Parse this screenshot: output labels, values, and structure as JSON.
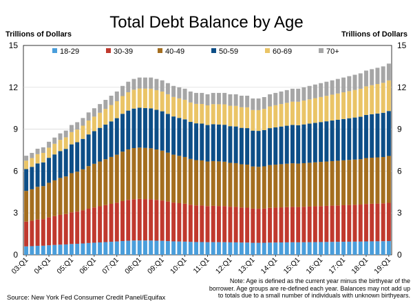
{
  "chart_data": {
    "type": "bar",
    "stacked": true,
    "title": "Total Debt Balance by Age",
    "ylabel_left": "Trillions of Dollars",
    "ylabel_right": "Trillions of Dollars",
    "ylim": [
      0,
      15
    ],
    "yticks": [
      "0",
      "3",
      "6",
      "9",
      "12",
      "15"
    ],
    "xtick_labels": [
      "03:Q1",
      "04:Q1",
      "05:Q1",
      "06:Q1",
      "07:Q1",
      "08:Q1",
      "09:Q1",
      "10:Q1",
      "11:Q1",
      "12:Q1",
      "13:Q1",
      "14:Q1",
      "15:Q1",
      "16:Q1",
      "17:Q1",
      "18:Q1",
      "19:Q1"
    ],
    "categories": [
      "03:Q1",
      "03:Q2",
      "03:Q3",
      "03:Q4",
      "04:Q1",
      "04:Q2",
      "04:Q3",
      "04:Q4",
      "05:Q1",
      "05:Q2",
      "05:Q3",
      "05:Q4",
      "06:Q1",
      "06:Q2",
      "06:Q3",
      "06:Q4",
      "07:Q1",
      "07:Q2",
      "07:Q3",
      "07:Q4",
      "08:Q1",
      "08:Q2",
      "08:Q3",
      "08:Q4",
      "09:Q1",
      "09:Q2",
      "09:Q3",
      "09:Q4",
      "10:Q1",
      "10:Q2",
      "10:Q3",
      "10:Q4",
      "11:Q1",
      "11:Q2",
      "11:Q3",
      "11:Q4",
      "12:Q1",
      "12:Q2",
      "12:Q3",
      "12:Q4",
      "13:Q1",
      "13:Q2",
      "13:Q3",
      "13:Q4",
      "14:Q1",
      "14:Q2",
      "14:Q3",
      "14:Q4",
      "15:Q1",
      "15:Q2",
      "15:Q3",
      "15:Q4",
      "16:Q1",
      "16:Q2",
      "16:Q3",
      "16:Q4",
      "17:Q1",
      "17:Q2",
      "17:Q3",
      "17:Q4",
      "18:Q1",
      "18:Q2",
      "18:Q3",
      "18:Q4",
      "19:Q1"
    ],
    "totals": [
      7.1,
      7.3,
      7.6,
      7.7,
      8.1,
      8.4,
      8.7,
      8.9,
      9.3,
      9.5,
      9.8,
      10.2,
      10.5,
      10.8,
      11.1,
      11.4,
      11.7,
      12.1,
      12.4,
      12.6,
      12.7,
      12.7,
      12.7,
      12.6,
      12.5,
      12.3,
      12.1,
      12.0,
      11.9,
      11.7,
      11.6,
      11.6,
      11.5,
      11.6,
      11.6,
      11.6,
      11.5,
      11.5,
      11.4,
      11.4,
      11.2,
      11.2,
      11.3,
      11.5,
      11.6,
      11.7,
      11.8,
      11.9,
      11.9,
      12.0,
      12.1,
      12.2,
      12.3,
      12.4,
      12.5,
      12.6,
      12.7,
      12.8,
      12.9,
      13.0,
      13.2,
      13.3,
      13.4,
      13.5,
      13.7
    ],
    "series": [
      {
        "name": "18-29",
        "color": "#4A9EDB",
        "share_start": 0.085,
        "share_end": 0.072
      },
      {
        "name": "30-39",
        "color": "#C0392E",
        "share_start": 0.25,
        "share_end": 0.2
      },
      {
        "name": "40-49",
        "color": "#A46E1F",
        "share_start": 0.31,
        "share_end": 0.245
      },
      {
        "name": "50-59",
        "color": "#0D4E87",
        "share_start": 0.22,
        "share_end": 0.235
      },
      {
        "name": "60-69",
        "color": "#EAC466",
        "share_start": 0.085,
        "share_end": 0.16
      },
      {
        "name": "70+",
        "color": "#A6A6A6",
        "share_start": 0.05,
        "share_end": 0.088
      }
    ],
    "note": "Note: Age is defined as the current year minus the birthyear of the borrower. Age groups are re-defined each year. Balances may not add up to totals due to a small number of individuals with unknown birthyears.",
    "source": "Source: New York Fed Consumer Credit Panel/Equifax"
  }
}
